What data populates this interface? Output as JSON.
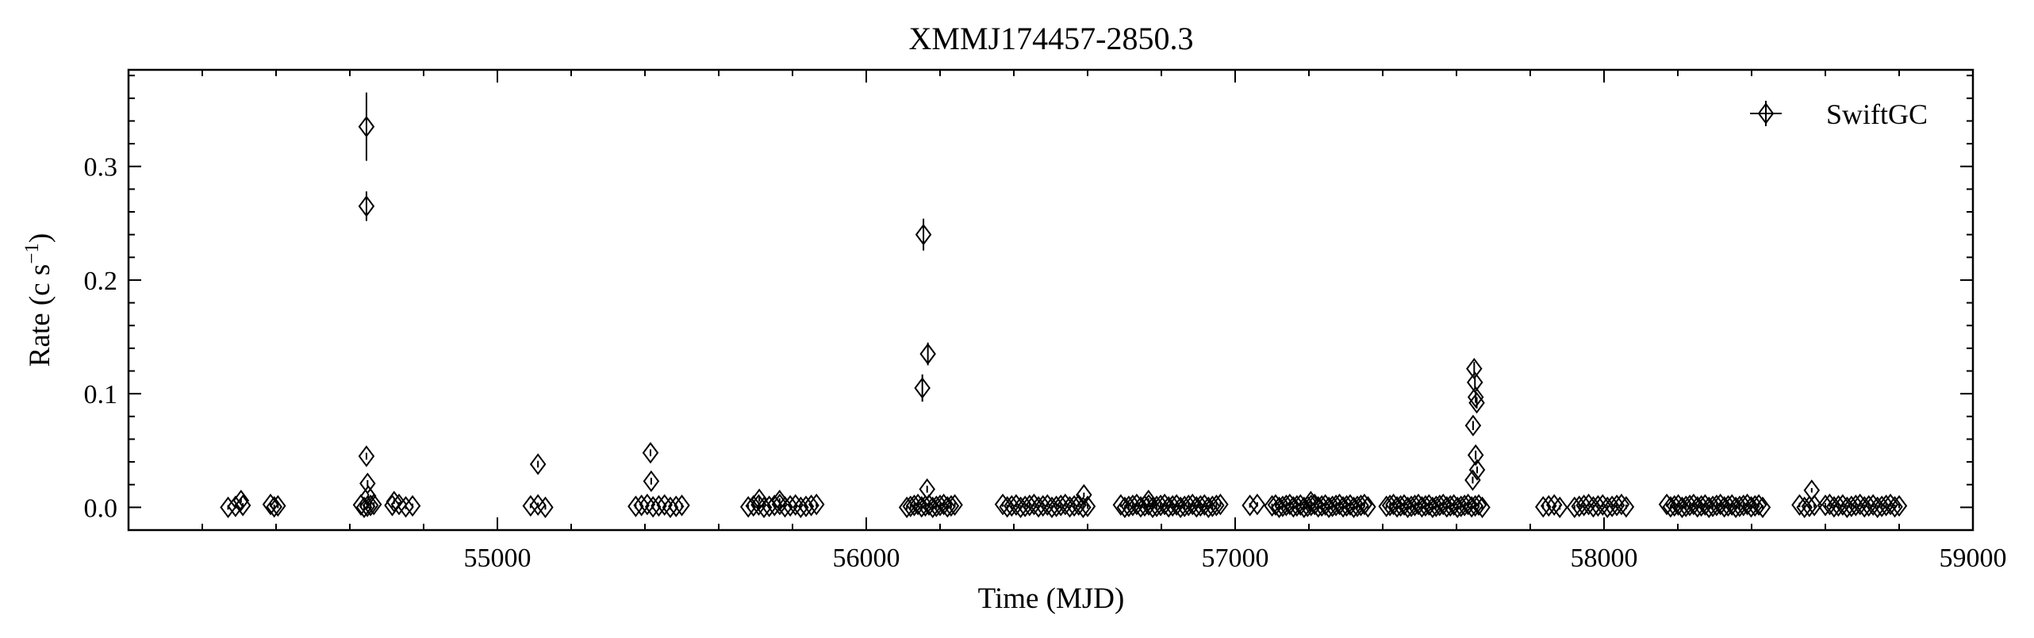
{
  "chart_data": {
    "type": "scatter",
    "title": "XMMJ174457-2850.3",
    "xlabel": "Time (MJD)",
    "ylabel": "Rate (c s",
    "ylabel_sup": "−1",
    "ylabel_end": ")",
    "xlim": [
      54000,
      59000
    ],
    "ylim": [
      -0.02,
      0.385
    ],
    "x_ticks": [
      55000,
      56000,
      57000,
      58000,
      59000
    ],
    "x_tick_labels": [
      "55000",
      "56000",
      "57000",
      "58000",
      "59000"
    ],
    "y_ticks": [
      0.0,
      0.1,
      0.2,
      0.3
    ],
    "y_tick_labels": [
      "0.0",
      "0.1",
      "0.2",
      "0.3"
    ],
    "x_minor_step": 200,
    "y_minor_step": 0.02,
    "legend": {
      "position": "top-right",
      "entries": [
        "SwiftGC"
      ]
    },
    "series": [
      {
        "name": "SwiftGC",
        "marker": "thin-diamond",
        "color": "#000000",
        "points": [
          {
            "x": 54645,
            "y": 0.335,
            "err": 0.03
          },
          {
            "x": 54645,
            "y": 0.265,
            "err": 0.013
          },
          {
            "x": 54645,
            "y": 0.045,
            "err": 0.003
          },
          {
            "x": 54648,
            "y": 0.021,
            "err": 0.003
          },
          {
            "x": 54650,
            "y": 0.01,
            "err": 0.002
          },
          {
            "x": 55110,
            "y": 0.038,
            "err": 0.003
          },
          {
            "x": 55415,
            "y": 0.048,
            "err": 0.003
          },
          {
            "x": 55417,
            "y": 0.023,
            "err": 0.003
          },
          {
            "x": 56155,
            "y": 0.24,
            "err": 0.014
          },
          {
            "x": 56167,
            "y": 0.135,
            "err": 0.01
          },
          {
            "x": 56152,
            "y": 0.105,
            "err": 0.012
          },
          {
            "x": 56165,
            "y": 0.016,
            "err": 0.003
          },
          {
            "x": 57648,
            "y": 0.122,
            "err": 0.006
          },
          {
            "x": 57650,
            "y": 0.11,
            "err": 0.006
          },
          {
            "x": 57652,
            "y": 0.097,
            "err": 0.005
          },
          {
            "x": 57655,
            "y": 0.092,
            "err": 0.005
          },
          {
            "x": 57645,
            "y": 0.072,
            "err": 0.004
          },
          {
            "x": 57652,
            "y": 0.046,
            "err": 0.004
          },
          {
            "x": 57656,
            "y": 0.033,
            "err": 0.003
          },
          {
            "x": 57644,
            "y": 0.024,
            "err": 0.003
          },
          {
            "x": 58563,
            "y": 0.015,
            "err": 0.002
          },
          {
            "x": 56590,
            "y": 0.011,
            "err": 0.002
          },
          {
            "x": 54305,
            "y": 0.006,
            "err": 0.002
          },
          {
            "x": 54720,
            "y": 0.005,
            "err": 0.002
          },
          {
            "x": 55710,
            "y": 0.007,
            "err": 0.002
          },
          {
            "x": 55765,
            "y": 0.006,
            "err": 0.002
          },
          {
            "x": 56765,
            "y": 0.006,
            "err": 0.002
          },
          {
            "x": 57205,
            "y": 0.005,
            "err": 0.002
          }
        ],
        "baseline_clusters": [
          {
            "start": 54270,
            "end": 54310,
            "n": 3
          },
          {
            "start": 54385,
            "end": 54405,
            "n": 3
          },
          {
            "start": 54630,
            "end": 54665,
            "n": 5
          },
          {
            "start": 54715,
            "end": 54770,
            "n": 4
          },
          {
            "start": 55090,
            "end": 55130,
            "n": 3
          },
          {
            "start": 55375,
            "end": 55500,
            "n": 9
          },
          {
            "start": 55680,
            "end": 55865,
            "n": 14
          },
          {
            "start": 56110,
            "end": 56240,
            "n": 14
          },
          {
            "start": 56370,
            "end": 56600,
            "n": 20
          },
          {
            "start": 56690,
            "end": 56960,
            "n": 26
          },
          {
            "start": 57040,
            "end": 57060,
            "n": 2
          },
          {
            "start": 57100,
            "end": 57360,
            "n": 28
          },
          {
            "start": 57410,
            "end": 57670,
            "n": 28
          },
          {
            "start": 57835,
            "end": 57880,
            "n": 4
          },
          {
            "start": 57920,
            "end": 58060,
            "n": 12
          },
          {
            "start": 58170,
            "end": 58430,
            "n": 26
          },
          {
            "start": 58530,
            "end": 58570,
            "n": 4
          },
          {
            "start": 58600,
            "end": 58800,
            "n": 18
          }
        ]
      }
    ]
  }
}
